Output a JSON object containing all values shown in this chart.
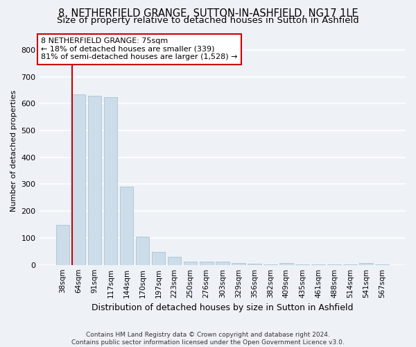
{
  "title": "8, NETHERFIELD GRANGE, SUTTON-IN-ASHFIELD, NG17 1LE",
  "subtitle": "Size of property relative to detached houses in Sutton in Ashfield",
  "xlabel": "Distribution of detached houses by size in Sutton in Ashfield",
  "ylabel": "Number of detached properties",
  "footer1": "Contains HM Land Registry data © Crown copyright and database right 2024.",
  "footer2": "Contains public sector information licensed under the Open Government Licence v3.0.",
  "annotation_title": "8 NETHERFIELD GRANGE: 75sqm",
  "annotation_line2": "← 18% of detached houses are smaller (339)",
  "annotation_line3": "81% of semi-detached houses are larger (1,528) →",
  "bar_labels": [
    "38sqm",
    "64sqm",
    "91sqm",
    "117sqm",
    "144sqm",
    "170sqm",
    "197sqm",
    "223sqm",
    "250sqm",
    "276sqm",
    "303sqm",
    "329sqm",
    "356sqm",
    "382sqm",
    "409sqm",
    "435sqm",
    "461sqm",
    "488sqm",
    "514sqm",
    "541sqm",
    "567sqm"
  ],
  "bar_values": [
    150,
    635,
    630,
    625,
    290,
    105,
    48,
    30,
    12,
    12,
    12,
    7,
    5,
    2,
    8,
    2,
    2,
    2,
    2,
    7,
    2
  ],
  "bar_color": "#ccdce8",
  "bar_edge_color": "#a0bcd0",
  "red_line_color": "#cc0000",
  "annotation_box_color": "#cc0000",
  "ylim": [
    0,
    850
  ],
  "yticks": [
    0,
    100,
    200,
    300,
    400,
    500,
    600,
    700,
    800
  ],
  "background_color": "#eef2f7",
  "grid_color": "#ffffff",
  "title_fontsize": 10.5,
  "subtitle_fontsize": 9.5,
  "ylabel_fontsize": 8,
  "xlabel_fontsize": 9,
  "tick_fontsize": 8,
  "xtick_fontsize": 7.5,
  "annotation_fontsize": 8,
  "footer_fontsize": 6.5
}
